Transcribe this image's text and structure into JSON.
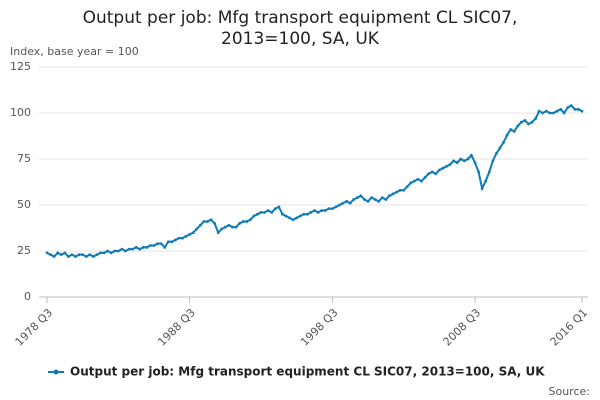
{
  "chart_data": {
    "type": "line",
    "title_lines": [
      "Output per job: Mfg transport equipment CL SIC07,",
      "2013=100, SA, UK"
    ],
    "y_label": "Index, base year = 100",
    "source": "Source:",
    "categories": [
      "1978 Q3",
      null,
      null,
      null,
      null,
      null,
      null,
      null,
      null,
      null,
      null,
      null,
      null,
      null,
      null,
      null,
      null,
      null,
      null,
      null,
      null,
      null,
      null,
      null,
      null,
      null,
      null,
      null,
      null,
      null,
      null,
      null,
      null,
      null,
      null,
      null,
      null,
      null,
      null,
      null,
      "1988 Q3",
      null,
      null,
      null,
      null,
      null,
      null,
      null,
      null,
      null,
      null,
      null,
      null,
      null,
      null,
      null,
      null,
      null,
      null,
      null,
      null,
      null,
      null,
      null,
      null,
      null,
      null,
      null,
      null,
      null,
      null,
      null,
      null,
      null,
      null,
      null,
      null,
      null,
      null,
      null,
      "1998 Q3",
      null,
      null,
      null,
      null,
      null,
      null,
      null,
      null,
      null,
      null,
      null,
      null,
      null,
      null,
      null,
      null,
      null,
      null,
      null,
      null,
      null,
      null,
      null,
      null,
      null,
      null,
      null,
      null,
      null,
      null,
      null,
      null,
      null,
      null,
      null,
      null,
      null,
      null,
      null,
      "2008 Q3",
      null,
      null,
      null,
      null,
      null,
      null,
      null,
      null,
      null,
      null,
      null,
      null,
      null,
      null,
      null,
      null,
      null,
      null,
      null,
      null,
      null,
      null,
      null,
      null,
      null,
      null,
      null,
      null,
      null,
      "2016 Q1"
    ],
    "series": [
      {
        "name": "Output per job: Mfg transport equipment CL SIC07, 2013=100, SA, UK",
        "color": "#0f7bb8",
        "values": [
          24,
          23,
          22,
          24,
          23,
          24,
          22,
          23,
          22,
          23,
          23,
          22,
          23,
          22,
          23,
          24,
          24,
          25,
          24,
          25,
          25,
          26,
          25,
          26,
          26,
          27,
          26,
          27,
          27,
          28,
          28,
          29,
          29,
          27,
          30,
          30,
          31,
          32,
          32,
          33,
          34,
          35,
          37,
          39,
          41,
          41,
          42,
          40,
          35,
          37,
          38,
          39,
          38,
          38,
          40,
          41,
          41,
          42,
          44,
          45,
          46,
          46,
          47,
          46,
          48,
          49,
          45,
          44,
          43,
          42,
          43,
          44,
          45,
          45,
          46,
          47,
          46,
          47,
          47,
          48,
          48,
          49,
          50,
          51,
          52,
          51,
          53,
          54,
          55,
          53,
          52,
          54,
          53,
          52,
          54,
          53,
          55,
          56,
          57,
          58,
          58,
          60,
          62,
          63,
          64,
          63,
          65,
          67,
          68,
          67,
          69,
          70,
          71,
          72,
          74,
          73,
          75,
          74,
          75,
          77,
          73,
          68,
          59,
          63,
          68,
          74,
          78,
          81,
          84,
          88,
          91,
          90,
          93,
          95,
          96,
          94,
          95,
          97,
          101,
          100,
          101,
          100,
          100,
          101,
          102,
          100,
          103,
          104,
          102,
          102,
          101
        ]
      }
    ],
    "ylim": [
      0,
      125
    ],
    "yticks": [
      0,
      25,
      50,
      75,
      100,
      125
    ],
    "grid": true
  }
}
